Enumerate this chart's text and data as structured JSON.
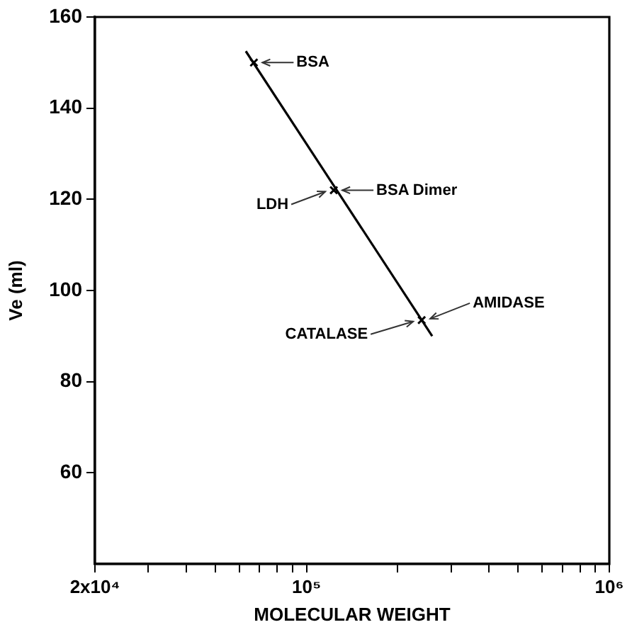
{
  "chart_data": {
    "type": "scatter",
    "xlabel": "MOLECULAR WEIGHT",
    "ylabel": "Ve (ml)",
    "log": "x",
    "xlim": [
      20000,
      1000000
    ],
    "xticks": [
      {
        "value": 20000,
        "label": "2x10⁴"
      },
      {
        "value": 30000,
        "label": null
      },
      {
        "value": 40000,
        "label": null
      },
      {
        "value": 50000,
        "label": null
      },
      {
        "value": 60000,
        "label": null
      },
      {
        "value": 70000,
        "label": null
      },
      {
        "value": 80000,
        "label": null
      },
      {
        "value": 90000,
        "label": null
      },
      {
        "value": 100000,
        "label": "10⁵"
      },
      {
        "value": 200000,
        "label": null
      },
      {
        "value": 300000,
        "label": null
      },
      {
        "value": 400000,
        "label": null
      },
      {
        "value": 500000,
        "label": null
      },
      {
        "value": 600000,
        "label": null
      },
      {
        "value": 700000,
        "label": null
      },
      {
        "value": 800000,
        "label": null
      },
      {
        "value": 900000,
        "label": null
      },
      {
        "value": 1000000,
        "label": "10⁶"
      }
    ],
    "ylim": [
      40,
      160
    ],
    "yticks": [
      60,
      80,
      100,
      120,
      140,
      160
    ],
    "grid": false,
    "legend": false,
    "series": [
      {
        "color": "#000000",
        "marker": "cross",
        "x": [
          67000,
          123000,
          240000
        ],
        "values": [
          150,
          122,
          93.5
        ]
      },
      {
        "type": "line",
        "color": "#000000",
        "marker": "none",
        "x": [
          63000,
          260000
        ],
        "values": [
          152.5,
          90
        ]
      }
    ],
    "annotations": [
      {
        "text": "BSA",
        "x": 67000,
        "y": 150
      },
      {
        "text": "BSA Dimer",
        "x": 123000,
        "y": 122
      },
      {
        "text": "LDH",
        "x": 123000,
        "y": 122
      },
      {
        "text": "AMIDASE",
        "x": 240000,
        "y": 93.5
      },
      {
        "text": "CATALASE",
        "x": 240000,
        "y": 93.5
      }
    ]
  }
}
